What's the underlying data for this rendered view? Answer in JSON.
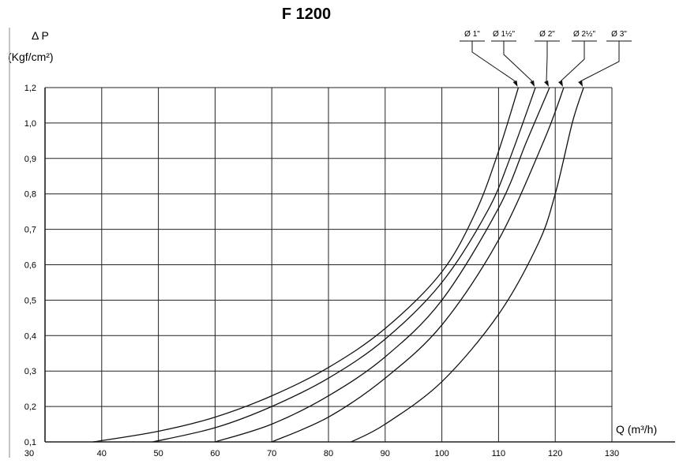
{
  "chart_data": {
    "type": "line",
    "title": "F 1200",
    "ylabel_line1": "Δ P",
    "ylabel_line2": "(Kgf/cm²)",
    "xlabel": "Q (m³/h)",
    "xlim": [
      30,
      130
    ],
    "ylim": [
      0.1,
      1.2
    ],
    "x_ticks": [
      "30",
      "40",
      "50",
      "60",
      "70",
      "80",
      "90",
      "100",
      "110",
      "120",
      "130"
    ],
    "y_ticks": [
      "0,1",
      "0,2",
      "0,3",
      "0,4",
      "0,5",
      "0,6",
      "0,7",
      "0,8",
      "0,9",
      "1,0",
      "1,2"
    ],
    "grid": true,
    "legend_position": "top-right",
    "series": [
      {
        "name": "Ø 1\"",
        "points": [
          [
            38.5,
            0.1
          ],
          [
            50,
            0.13
          ],
          [
            60,
            0.17
          ],
          [
            70,
            0.23
          ],
          [
            80,
            0.31
          ],
          [
            90,
            0.42
          ],
          [
            100,
            0.58
          ],
          [
            106,
            0.75
          ],
          [
            110,
            0.92
          ],
          [
            113.5,
            1.2
          ]
        ]
      },
      {
        "name": "Ø 1½\"",
        "points": [
          [
            49,
            0.1
          ],
          [
            60,
            0.14
          ],
          [
            70,
            0.2
          ],
          [
            80,
            0.28
          ],
          [
            90,
            0.39
          ],
          [
            100,
            0.55
          ],
          [
            108,
            0.75
          ],
          [
            112,
            0.9
          ],
          [
            116.5,
            1.2
          ]
        ]
      },
      {
        "name": "Ø 2\"",
        "points": [
          [
            60,
            0.1
          ],
          [
            70,
            0.15
          ],
          [
            80,
            0.23
          ],
          [
            90,
            0.34
          ],
          [
            100,
            0.5
          ],
          [
            110,
            0.76
          ],
          [
            115,
            0.95
          ],
          [
            119,
            1.2
          ]
        ]
      },
      {
        "name": "Ø 2½\"",
        "points": [
          [
            70,
            0.1
          ],
          [
            80,
            0.17
          ],
          [
            90,
            0.28
          ],
          [
            100,
            0.43
          ],
          [
            110,
            0.67
          ],
          [
            118,
            0.95
          ],
          [
            121.5,
            1.2
          ]
        ]
      },
      {
        "name": "Ø 3\"",
        "points": [
          [
            84,
            0.1
          ],
          [
            90,
            0.15
          ],
          [
            100,
            0.27
          ],
          [
            110,
            0.46
          ],
          [
            117,
            0.66
          ],
          [
            120,
            0.8
          ],
          [
            123,
            1.0
          ],
          [
            125,
            1.2
          ]
        ]
      }
    ]
  }
}
